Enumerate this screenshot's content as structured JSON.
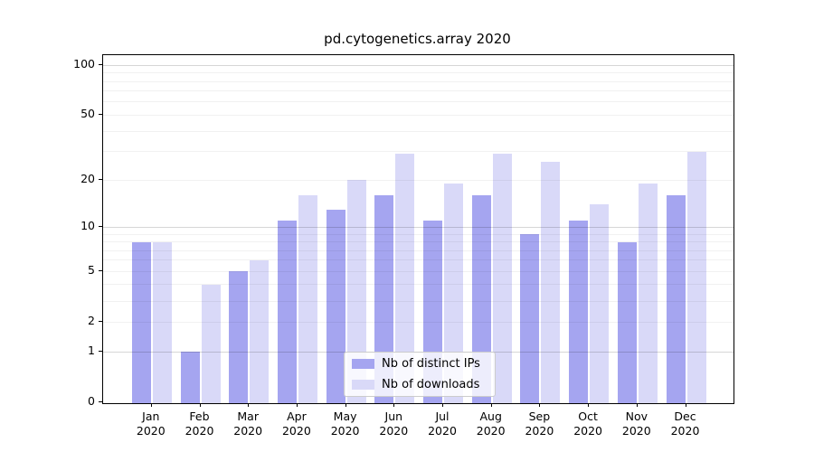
{
  "chart_data": {
    "type": "bar",
    "title": "pd.cytogenetics.array 2020",
    "categories": [
      "Jan 2020",
      "Feb 2020",
      "Mar 2020",
      "Apr 2020",
      "May 2020",
      "Jun 2020",
      "Jul 2020",
      "Aug 2020",
      "Sep 2020",
      "Oct 2020",
      "Nov 2020",
      "Dec 2020"
    ],
    "series": [
      {
        "name": "Nb of distinct IPs",
        "color": "#a5a5f0",
        "values": [
          8,
          1,
          5,
          11,
          13,
          16,
          11,
          16,
          9,
          11,
          8,
          16
        ]
      },
      {
        "name": "Nb of downloads",
        "color": "#d9d9f8",
        "values": [
          8,
          4,
          6,
          16,
          20,
          29,
          19,
          29,
          26,
          14,
          19,
          30
        ]
      }
    ],
    "yscale": "log1p",
    "y_ticks": [
      0,
      1,
      2,
      5,
      10,
      20,
      50,
      100
    ],
    "y_minor_gridlines": [
      2,
      3,
      4,
      5,
      6,
      7,
      8,
      9,
      20,
      30,
      40,
      50,
      60,
      70,
      80,
      90
    ],
    "y_major_gridlines": [
      1,
      10,
      100
    ],
    "ylim": [
      0,
      115
    ],
    "grid": true,
    "legend_position": "lower center",
    "axis_color": "#000000",
    "background_color": "#ffffff"
  }
}
